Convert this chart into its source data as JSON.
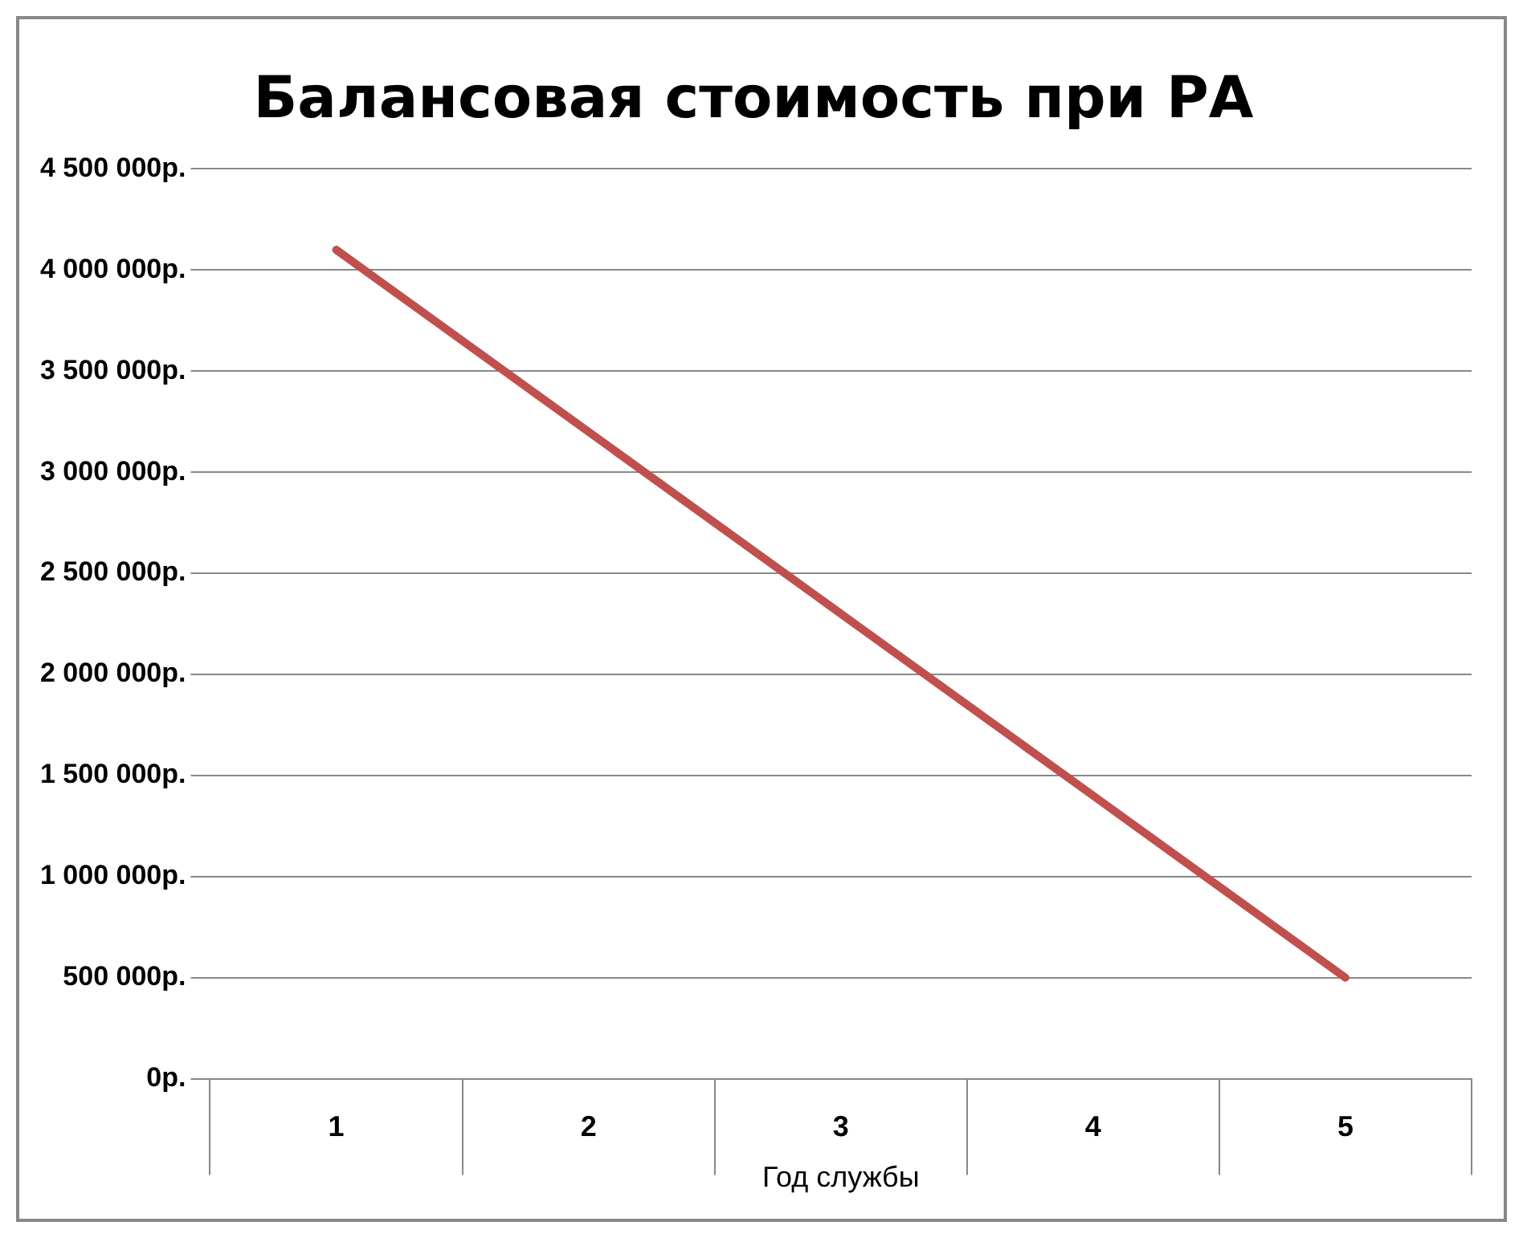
{
  "chart_data": {
    "type": "line",
    "title": "Балансовая стоимость при РА",
    "xlabel": "Год службы",
    "categories": [
      "1",
      "2",
      "3",
      "4",
      "5"
    ],
    "series": [
      {
        "color": "#c0504d",
        "values": [
          4100000,
          3200000,
          2300000,
          1400000,
          500000
        ]
      }
    ],
    "ylim": [
      0,
      4500000
    ],
    "yticks": [
      {
        "value": 0,
        "label": "0р."
      },
      {
        "value": 500000,
        "label": "500 000р."
      },
      {
        "value": 1000000,
        "label": "1 000 000р."
      },
      {
        "value": 1500000,
        "label": "1 500 000р."
      },
      {
        "value": 2000000,
        "label": "2 000 000р."
      },
      {
        "value": 2500000,
        "label": "2 500 000р."
      },
      {
        "value": 3000000,
        "label": "3 000 000р."
      },
      {
        "value": 3500000,
        "label": "3 500 000р."
      },
      {
        "value": 4000000,
        "label": "4 000 000р."
      },
      {
        "value": 4500000,
        "label": "4 500 000р."
      }
    ],
    "grid": "y",
    "legend": false,
    "marker": "none",
    "line_style": "solid"
  }
}
